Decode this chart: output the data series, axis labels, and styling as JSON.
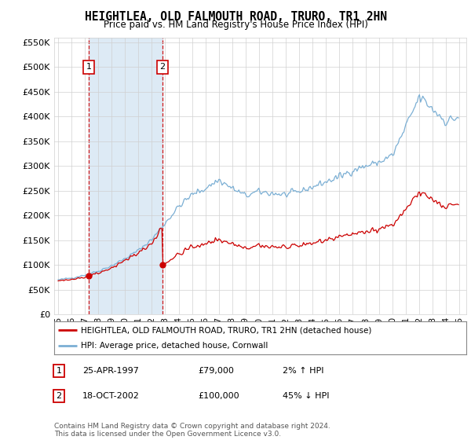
{
  "title": "HEIGHTLEA, OLD FALMOUTH ROAD, TRURO, TR1 2HN",
  "subtitle": "Price paid vs. HM Land Registry's House Price Index (HPI)",
  "legend_line1": "HEIGHTLEA, OLD FALMOUTH ROAD, TRURO, TR1 2HN (detached house)",
  "legend_line2": "HPI: Average price, detached house, Cornwall",
  "annotation1_label": "1",
  "annotation1_date": "25-APR-1997",
  "annotation1_price": "£79,000",
  "annotation1_hpi": "2% ↑ HPI",
  "annotation2_label": "2",
  "annotation2_date": "18-OCT-2002",
  "annotation2_price": "£100,000",
  "annotation2_hpi": "45% ↓ HPI",
  "footer": "Contains HM Land Registry data © Crown copyright and database right 2024.\nThis data is licensed under the Open Government Licence v3.0.",
  "sale1_year": 1997.3,
  "sale1_price": 79000,
  "sale2_year": 2002.8,
  "sale2_price": 100000,
  "hpi_color": "#7bafd4",
  "price_color": "#cc0000",
  "sale_marker_color": "#cc0000",
  "background_color": "#ffffff",
  "grid_color": "#d0d0d0",
  "annotation_box_color": "#cc0000",
  "shaded_color": "#ddeaf5",
  "ylim": [
    0,
    560000
  ],
  "xlim_start": 1994.7,
  "xlim_end": 2025.5,
  "yticks": [
    0,
    50000,
    100000,
    150000,
    200000,
    250000,
    300000,
    350000,
    400000,
    450000,
    500000,
    550000
  ]
}
